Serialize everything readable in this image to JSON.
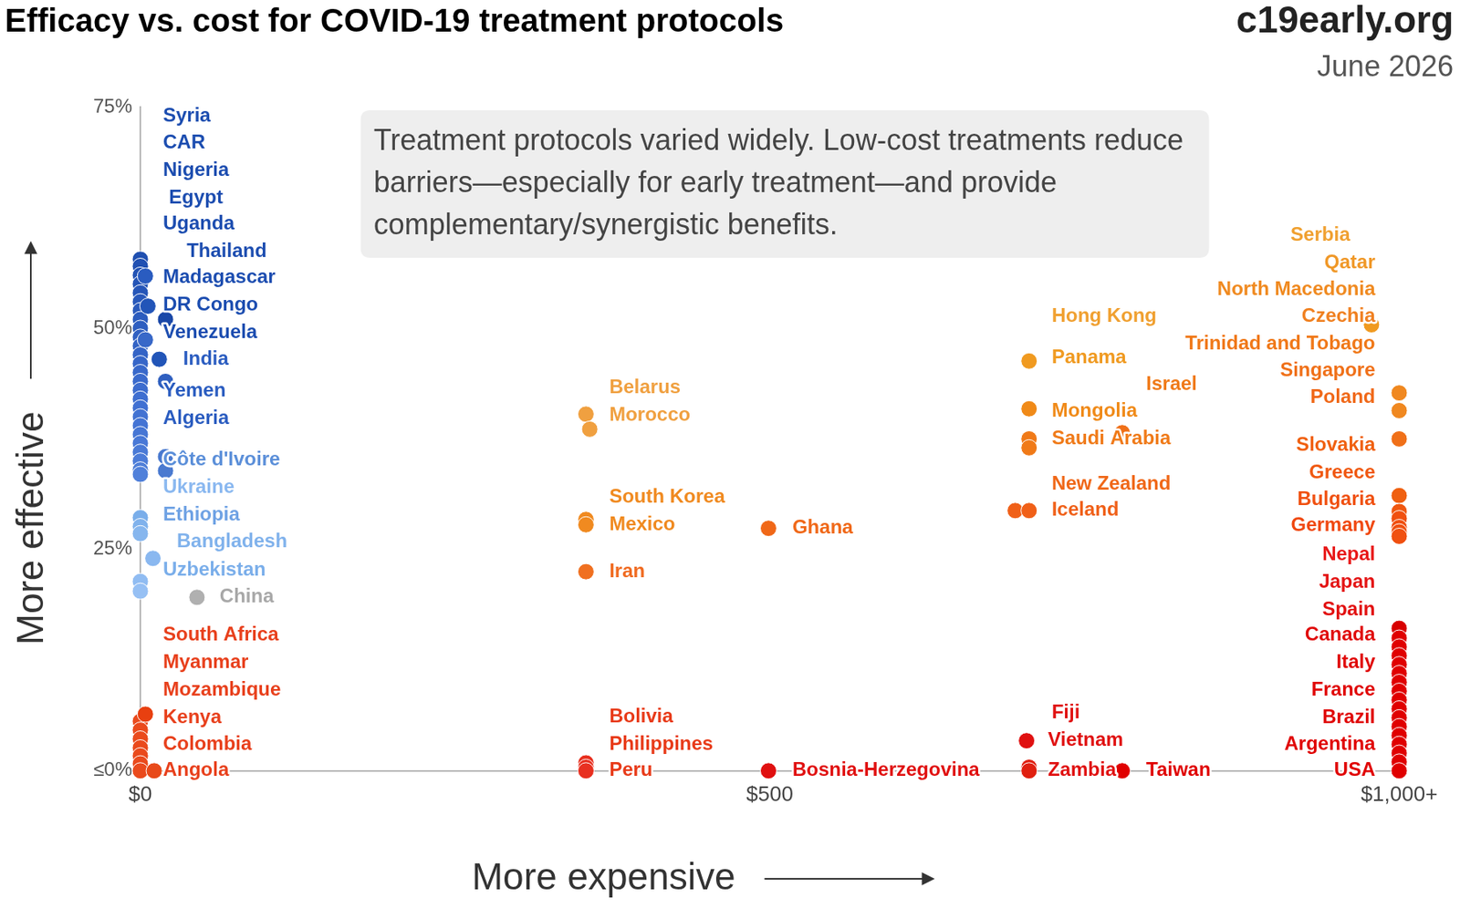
{
  "chart_data": {
    "type": "scatter",
    "title": "Efficacy vs. cost for COVID-19 treatment protocols",
    "source": "c19early.org",
    "date": "June 2026",
    "text_box": "Treatment protocols varied widely. Low-cost treatments reduce barriers—especially for early treatment—and provide complementary/synergistic benefits.",
    "x_label": "More expensive",
    "y_label": "More effective",
    "xlim": [
      0,
      1000
    ],
    "ylim": [
      0,
      75
    ],
    "xticks": [
      {
        "value": 0,
        "label": "$0"
      },
      {
        "value": 500,
        "label": "$500"
      },
      {
        "value": 1000,
        "label": "$1,000+"
      }
    ],
    "yticks": [
      {
        "value": 0,
        "label": "≤0%"
      },
      {
        "value": 25,
        "label": "25%"
      },
      {
        "value": 50,
        "label": "50%"
      },
      {
        "value": 75,
        "label": "75%"
      }
    ],
    "grid": false,
    "x": [
      0,
      0,
      0,
      0,
      0,
      0,
      0,
      0,
      0,
      0,
      0,
      0,
      0,
      0,
      0,
      0,
      0,
      0,
      0,
      0,
      0,
      0,
      0,
      0,
      0,
      0,
      0,
      0,
      0,
      0,
      0,
      4,
      6,
      20,
      4,
      15,
      20,
      20,
      20,
      10,
      45,
      0,
      0,
      0,
      0,
      0,
      0,
      0,
      4,
      11,
      354,
      357,
      354,
      354,
      354,
      354,
      354,
      354,
      499,
      499,
      706,
      706,
      706,
      706,
      695,
      706,
      780,
      780,
      704,
      706,
      706,
      978,
      1000,
      1000,
      1000,
      1000,
      1000,
      1000,
      1000,
      1000,
      1000,
      1000,
      1000,
      1000,
      1000,
      1000,
      1000,
      1000,
      1000,
      1000,
      1000,
      1000,
      1000,
      1000,
      1000,
      1000,
      1000,
      1000
    ],
    "values": [
      57.8,
      57,
      56,
      55,
      54,
      53,
      52,
      51,
      50,
      49,
      48,
      47,
      46,
      45,
      44,
      43,
      42,
      41,
      40,
      39,
      38,
      37,
      36,
      35,
      34,
      33.5,
      28.6,
      27.6,
      26.8,
      21.4,
      20.3,
      55.9,
      52.5,
      51,
      48.7,
      46.5,
      44,
      35.5,
      33.9,
      24,
      19.6,
      5.6,
      4.6,
      3.6,
      2.6,
      1.7,
      0.8,
      0,
      6.4,
      0,
      40.3,
      38.6,
      28.4,
      27.8,
      22.5,
      0.9,
      0.4,
      0,
      27.4,
      0,
      46.3,
      40.9,
      37.5,
      36.5,
      29.4,
      29.4,
      38.2,
      0,
      3.4,
      0.4,
      0,
      50.4,
      42.7,
      40.7,
      37.5,
      31.1,
      29.3,
      28.5,
      27.5,
      27,
      26.5,
      16.1,
      15,
      14,
      13,
      12,
      11,
      10,
      9,
      8,
      7,
      6,
      5,
      4,
      3,
      2,
      1,
      0
    ],
    "colors": [
      "#1f4fb0",
      "#2050b2",
      "#2252b4",
      "#2454b6",
      "#2656b8",
      "#2858ba",
      "#2a5abc",
      "#2c5cbe",
      "#2e5ec0",
      "#3060c2",
      "#3262c4",
      "#3464c6",
      "#3666c8",
      "#3868ca",
      "#3a6acc",
      "#3c6cce",
      "#3e6ed0",
      "#4070d2",
      "#4272d2",
      "#4474d4",
      "#4676d4",
      "#4878d6",
      "#4a7ad6",
      "#4c7cd8",
      "#4e7ed8",
      "#5080da",
      "#7aaeea",
      "#80b2ec",
      "#86b6ee",
      "#90bcf2",
      "#96c0f4",
      "#2a5cc0",
      "#2255b8",
      "#1a48a8",
      "#3868c8",
      "#2255b8",
      "#3060c0",
      "#4a7ad0",
      "#4a7ad0",
      "#8ab8f0",
      "#b0b0b0",
      "#ea4a1c",
      "#ea4a1c",
      "#ea4a1c",
      "#ea4a1c",
      "#ea4a1c",
      "#ea4a1c",
      "#ea4a1c",
      "#e84010",
      "#e84a1a",
      "#f0a040",
      "#f0a040",
      "#f08a20",
      "#f08a20",
      "#f07020",
      "#e83020",
      "#e83020",
      "#e83020",
      "#f06818",
      "#e01010",
      "#f09a20",
      "#f08a18",
      "#f07a18",
      "#f07a18",
      "#f06018",
      "#f06018",
      "#f07018",
      "#e00000",
      "#e01010",
      "#e02010",
      "#e02010",
      "#f09a20",
      "#f08820",
      "#f08820",
      "#f07018",
      "#f06010",
      "#f05810",
      "#f05010",
      "#f05010",
      "#f05010",
      "#f05010",
      "#d80000",
      "#e00000",
      "#e00000",
      "#e00000",
      "#e00000",
      "#e00000",
      "#e00000",
      "#e00000",
      "#e00000",
      "#e00000",
      "#e00000",
      "#e00000",
      "#e00000",
      "#e00000",
      "#e00000",
      "#e00000",
      "#e00000"
    ],
    "annotations": [
      {
        "text": "Syria",
        "x": 18,
        "y": 74.0,
        "color": "#1c4db0"
      },
      {
        "text": "CAR",
        "x": 18,
        "y": 70.9,
        "color": "#1c4db0"
      },
      {
        "text": "Nigeria",
        "x": 18,
        "y": 67.8,
        "color": "#1c4db0"
      },
      {
        "text": "Egypt",
        "x": 22.7,
        "y": 64.7,
        "color": "#1c4db0"
      },
      {
        "text": "Uganda",
        "x": 18,
        "y": 61.8,
        "color": "#1c4db0"
      },
      {
        "text": "Thailand",
        "x": 36.8,
        "y": 58.7,
        "color": "#1c4db0"
      },
      {
        "text": "Madagascar",
        "x": 18,
        "y": 55.7,
        "color": "#1c4db0"
      },
      {
        "text": "DR Congo",
        "x": 18,
        "y": 52.6,
        "color": "#1c4db0"
      },
      {
        "text": "Venezuela",
        "x": 18,
        "y": 49.5,
        "color": "#1c4db0"
      },
      {
        "text": "India",
        "x": 34,
        "y": 46.5,
        "color": "#2a5cc0"
      },
      {
        "text": "Yemen",
        "x": 18,
        "y": 42.9,
        "color": "#2a5cc0"
      },
      {
        "text": "Algeria",
        "x": 18,
        "y": 39.8,
        "color": "#2a5cc0"
      },
      {
        "text": "Côte d'Ivoire",
        "x": 18,
        "y": 35.1,
        "color": "#5b8fd9"
      },
      {
        "text": "Ukraine",
        "x": 18,
        "y": 32.0,
        "color": "#8ab8f0"
      },
      {
        "text": "Ethiopia",
        "x": 18,
        "y": 28.9,
        "color": "#6fa2e4"
      },
      {
        "text": "Bangladesh",
        "x": 29,
        "y": 25.9,
        "color": "#80b2ec"
      },
      {
        "text": "Uzbekistan",
        "x": 18,
        "y": 22.7,
        "color": "#7aaeea"
      },
      {
        "text": "China",
        "x": 63,
        "y": 19.6,
        "color": "#a8a8a8"
      },
      {
        "text": "South Africa",
        "x": 18,
        "y": 15.3,
        "color": "#e8401c"
      },
      {
        "text": "Myanmar",
        "x": 18,
        "y": 12.2,
        "color": "#e8401c"
      },
      {
        "text": "Mozambique",
        "x": 18,
        "y": 9.1,
        "color": "#e8401c"
      },
      {
        "text": "Kenya",
        "x": 18,
        "y": 6.0,
        "color": "#e8401c"
      },
      {
        "text": "Colombia",
        "x": 18,
        "y": 3.0,
        "color": "#e8401c"
      },
      {
        "text": "Angola",
        "x": 18,
        "y": 0,
        "color": "#e8401c"
      },
      {
        "text": "Belarus",
        "x": 372.5,
        "y": 43.3,
        "color": "#f0a040"
      },
      {
        "text": "Morocco",
        "x": 372.5,
        "y": 40.2,
        "color": "#f0a040"
      },
      {
        "text": "South Korea",
        "x": 372.5,
        "y": 30.9,
        "color": "#f08a20"
      },
      {
        "text": "Mexico",
        "x": 372.5,
        "y": 27.8,
        "color": "#f08a20"
      },
      {
        "text": "Iran",
        "x": 372.5,
        "y": 22.5,
        "color": "#f06a20"
      },
      {
        "text": "Bolivia",
        "x": 372.5,
        "y": 6.1,
        "color": "#e83a18"
      },
      {
        "text": "Philippines",
        "x": 372.5,
        "y": 3.0,
        "color": "#e83a18"
      },
      {
        "text": "Peru",
        "x": 372.5,
        "y": 0,
        "color": "#e83a18"
      },
      {
        "text": "Ghana",
        "x": 518,
        "y": 27.4,
        "color": "#f06818"
      },
      {
        "text": "Bosnia-Herzegovina",
        "x": 518,
        "y": 0,
        "color": "#e01010"
      },
      {
        "text": "Hong Kong",
        "x": 724,
        "y": 51.3,
        "color": "#f0a030"
      },
      {
        "text": "Panama",
        "x": 724,
        "y": 46.7,
        "color": "#f09a20"
      },
      {
        "text": "Israel",
        "x": 799,
        "y": 43.6,
        "color": "#f07a18"
      },
      {
        "text": "Mongolia",
        "x": 724,
        "y": 40.6,
        "color": "#f08a18"
      },
      {
        "text": "Saudi Arabia",
        "x": 724,
        "y": 37.5,
        "color": "#f07a18"
      },
      {
        "text": "New Zealand",
        "x": 724,
        "y": 32.4,
        "color": "#f06818"
      },
      {
        "text": "Iceland",
        "x": 724,
        "y": 29.4,
        "color": "#f06018"
      },
      {
        "text": "Fiji",
        "x": 724,
        "y": 6.5,
        "color": "#e01010"
      },
      {
        "text": "Vietnam",
        "x": 721,
        "y": 3.4,
        "color": "#e01010"
      },
      {
        "text": "Zambia",
        "x": 721,
        "y": 0,
        "color": "#e01010"
      },
      {
        "text": "Taiwan",
        "x": 799,
        "y": 0,
        "color": "#e00000"
      },
      {
        "text": "Serbia",
        "x": 961,
        "y": 60.5,
        "color": "#f0a030"
      },
      {
        "text": "Qatar",
        "x": 981,
        "y": 57.4,
        "color": "#f09828"
      },
      {
        "text": "North Macedonia",
        "x": 981,
        "y": 54.4,
        "color": "#f08a20"
      },
      {
        "text": "Czechia",
        "x": 981,
        "y": 51.3,
        "color": "#f08020"
      },
      {
        "text": "Trinidad and Tobago",
        "x": 981,
        "y": 48.2,
        "color": "#f07818"
      },
      {
        "text": "Singapore",
        "x": 981,
        "y": 45.2,
        "color": "#f07018"
      },
      {
        "text": "Poland",
        "x": 981,
        "y": 42.2,
        "color": "#f06818"
      },
      {
        "text": "Slovakia",
        "x": 981,
        "y": 36.8,
        "color": "#f06010"
      },
      {
        "text": "Greece",
        "x": 981,
        "y": 33.7,
        "color": "#f05810"
      },
      {
        "text": "Bulgaria",
        "x": 981,
        "y": 30.6,
        "color": "#f05010"
      },
      {
        "text": "Germany",
        "x": 981,
        "y": 27.7,
        "color": "#f04810"
      },
      {
        "text": "Nepal",
        "x": 981,
        "y": 24.4,
        "color": "#e81818"
      },
      {
        "text": "Japan",
        "x": 981,
        "y": 21.3,
        "color": "#e41414"
      },
      {
        "text": "Spain",
        "x": 981,
        "y": 18.2,
        "color": "#e21010"
      },
      {
        "text": "Canada",
        "x": 981,
        "y": 15.3,
        "color": "#e00c0c"
      },
      {
        "text": "Italy",
        "x": 981,
        "y": 12.2,
        "color": "#e00808"
      },
      {
        "text": "France",
        "x": 981,
        "y": 9.1,
        "color": "#e00404"
      },
      {
        "text": "Brazil",
        "x": 981,
        "y": 6.0,
        "color": "#e00000"
      },
      {
        "text": "Argentina",
        "x": 981,
        "y": 3.0,
        "color": "#e00000"
      },
      {
        "text": "USA",
        "x": 981,
        "y": 0,
        "color": "#e00000"
      }
    ]
  }
}
